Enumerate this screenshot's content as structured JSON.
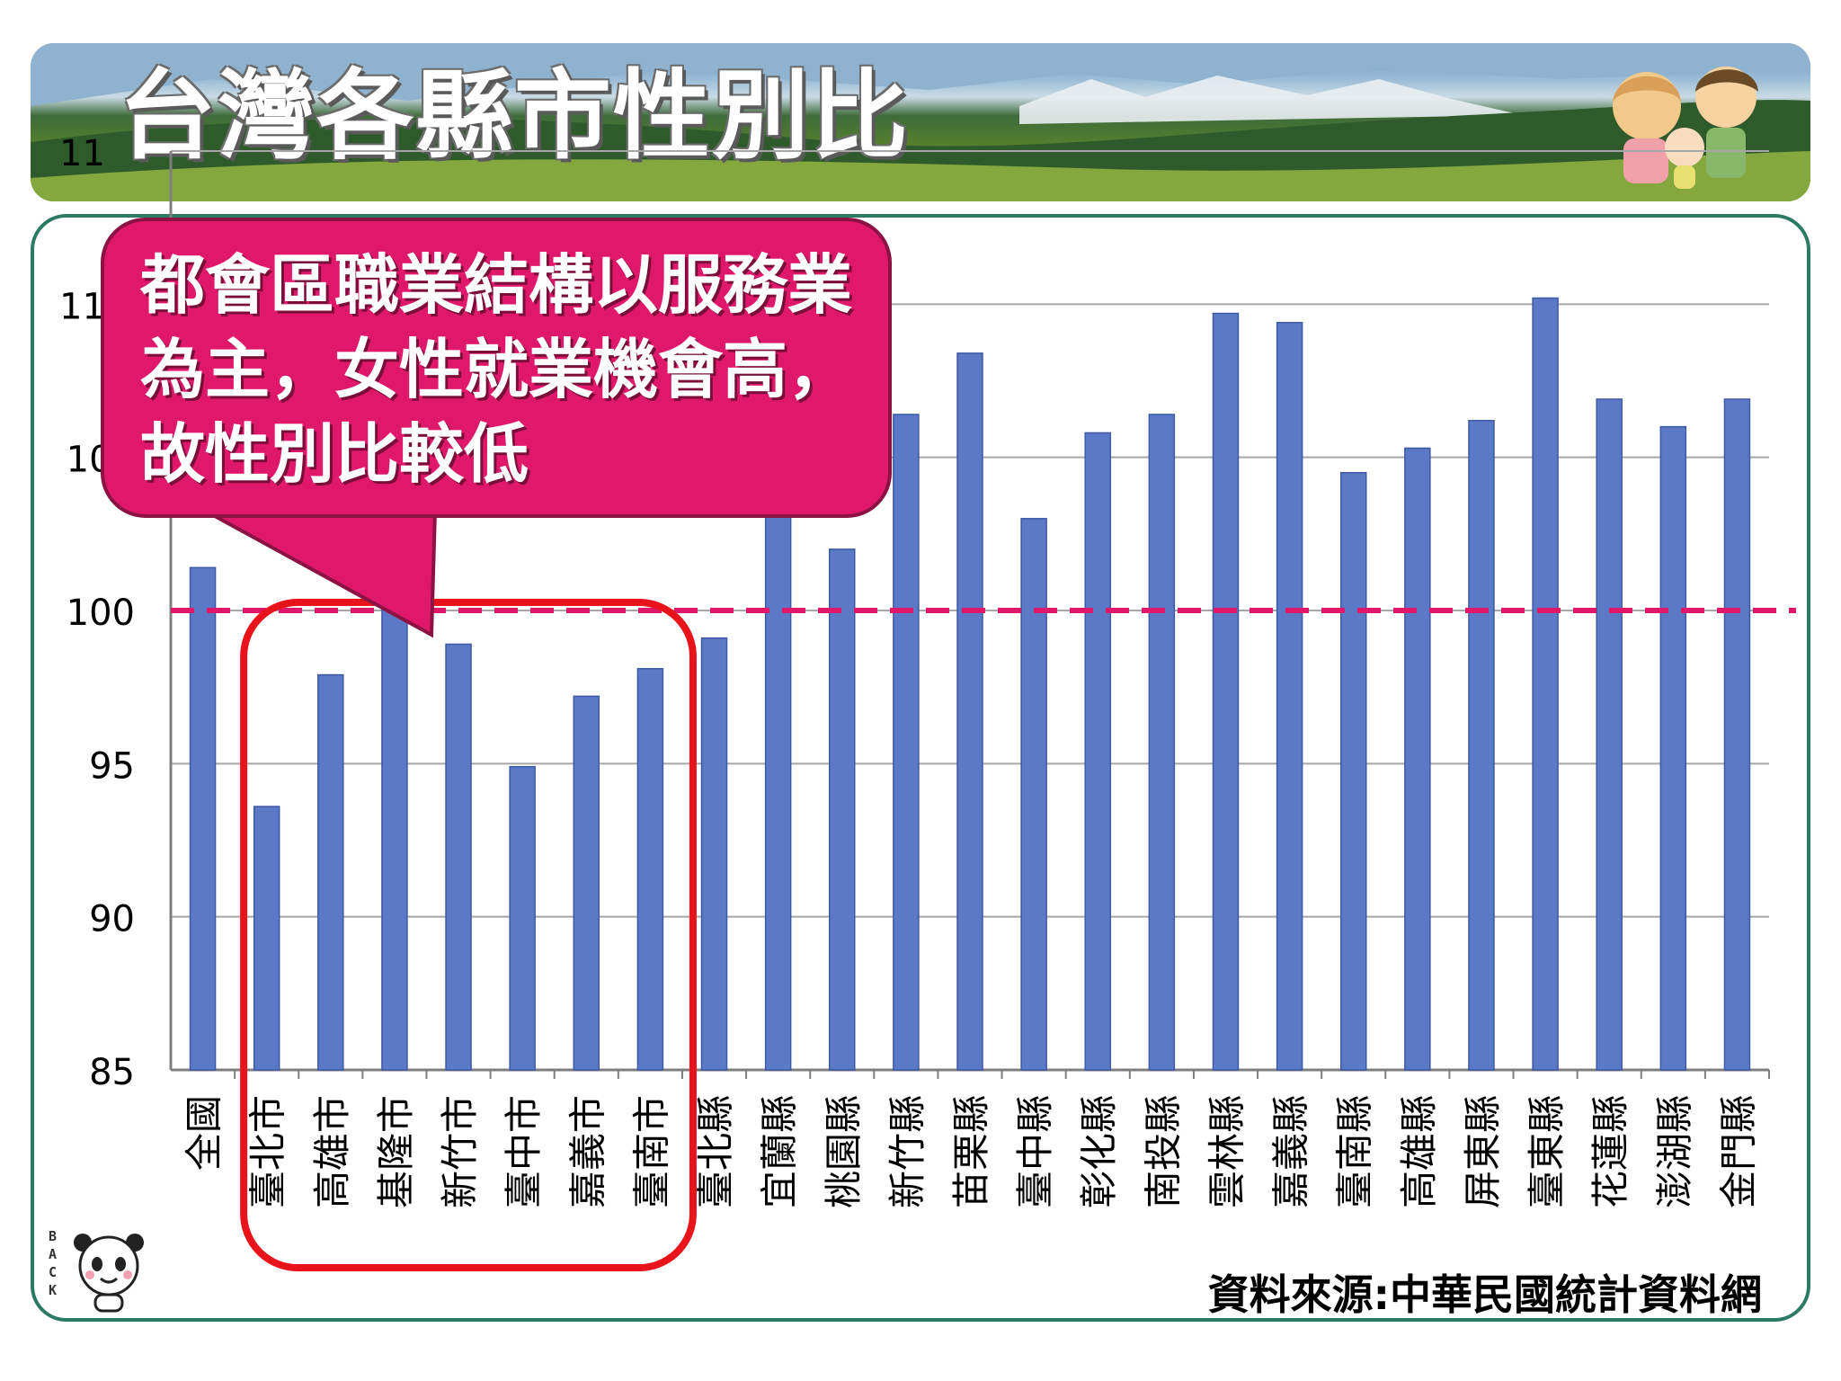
{
  "header": {
    "title": "台灣各縣市性別比"
  },
  "callout": {
    "text": "都會區職業結構以服務業為主，女性就業機會高，故性別比較低"
  },
  "source": "資料來源:中華民國統計資料網",
  "back_button": {
    "label": "BACK"
  },
  "colors": {
    "bar": "#5b79c6",
    "reference_line": "#e0186c",
    "highlight_box": "#e8131b",
    "callout": "#e0186c",
    "panel_border": "#2a7a64"
  },
  "icons": {
    "banner_art": "family-illustration-icon",
    "back": "panda-back-icon"
  },
  "chart_data": {
    "type": "bar",
    "categories": [
      "全國",
      "臺北市",
      "高雄市",
      "基隆市",
      "新竹市",
      "臺中市",
      "嘉義市",
      "臺南市",
      "臺北縣",
      "宜蘭縣",
      "桃園縣",
      "新竹縣",
      "苗栗縣",
      "臺中縣",
      "彰化縣",
      "南投縣",
      "雲林縣",
      "嘉義縣",
      "臺南縣",
      "高雄縣",
      "屏東縣",
      "臺東縣",
      "花蓮縣",
      "澎湖縣",
      "金門縣"
    ],
    "values": [
      101.4,
      93.6,
      97.9,
      101.9,
      98.9,
      94.9,
      97.2,
      98.1,
      99.1,
      104.4,
      102.0,
      106.4,
      108.4,
      103.0,
      105.8,
      106.4,
      109.7,
      109.4,
      104.5,
      105.3,
      106.2,
      110.2,
      106.9,
      106.0,
      106.9
    ],
    "ylim": [
      85,
      115
    ],
    "yticks_visible": [
      85,
      90,
      95,
      100,
      105
    ],
    "ytick_partial_labels": [
      "11",
      "11"
    ],
    "reference_line": 100,
    "highlight_categories": [
      "臺北市",
      "高雄市",
      "基隆市",
      "新竹市",
      "臺中市",
      "嘉義市",
      "臺南市"
    ],
    "grid": true,
    "title": "",
    "xlabel": "",
    "ylabel": ""
  }
}
